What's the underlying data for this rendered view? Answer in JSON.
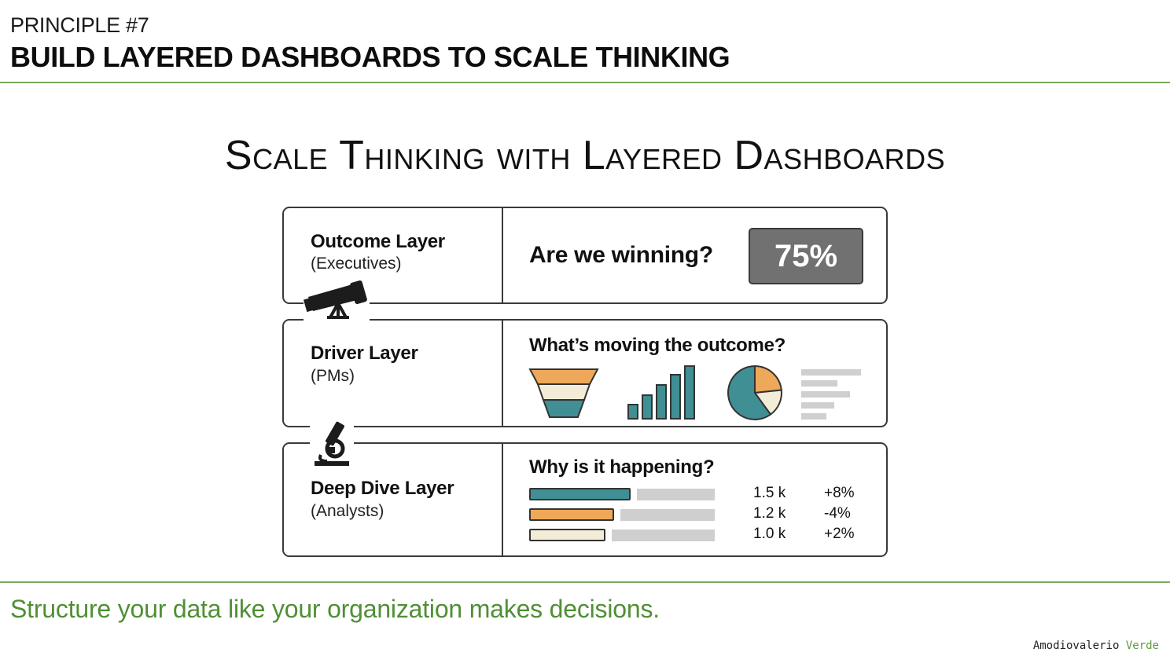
{
  "header": {
    "principle": "PRINCIPLE #7",
    "headline": "BUILD LAYERED DASHBOARDS TO SCALE THINKING"
  },
  "title": "Scale Thinking with Layered Dashboards",
  "layers": [
    {
      "name": "Outcome Layer",
      "audience": "(Executives)",
      "question": "Are we winning?",
      "kpi": "75%"
    },
    {
      "name": "Driver Layer",
      "audience": "(PMs)",
      "question": "What’s moving the outcome?"
    },
    {
      "name": "Deep Dive Layer",
      "audience": "(Analysts)",
      "question": "Why is it happening?",
      "rows": [
        {
          "value": "1.5 k",
          "change": "+8%",
          "fill": 0.78,
          "color": "#3f8f94"
        },
        {
          "value": "1.2 k",
          "change": "-4%",
          "fill": 0.6,
          "color": "#eea85a"
        },
        {
          "value": "1.0 k",
          "change": "+2%",
          "fill": 0.5,
          "color": "#f3ecd6"
        }
      ]
    }
  ],
  "icons": [
    "telescope-icon",
    "microscope-icon",
    "funnel-chart-icon",
    "bar-chart-icon",
    "pie-chart-icon",
    "text-lines-icon"
  ],
  "colors": {
    "teal": "#3f8f94",
    "orange": "#eea85a",
    "cream": "#f3ecd6",
    "gray": "#717171",
    "accent": "#5e9a3e"
  },
  "footer": {
    "tagline": "Structure your data like your organization makes decisions.",
    "credit_name": "Amodiovalerio",
    "credit_accent": "Verde"
  }
}
